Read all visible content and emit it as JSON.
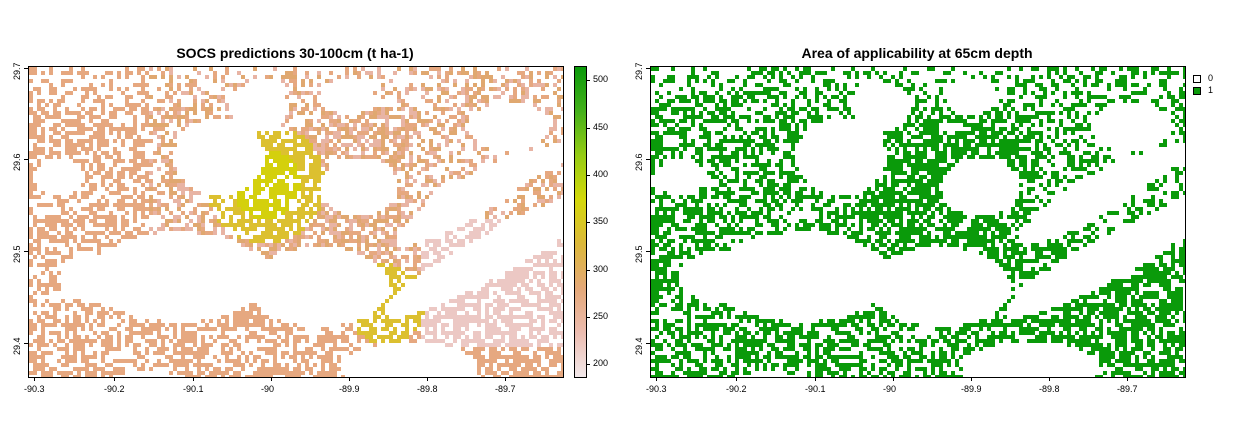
{
  "left_panel": {
    "title": "SOCS predictions 30-100cm (t ha-1)",
    "x_ticks": [
      "-90.3",
      "-90.2",
      "-90.1",
      "-90",
      "-89.9",
      "-89.8",
      "-89.7"
    ],
    "y_ticks": [
      "29.4",
      "29.5",
      "29.6",
      "29.7"
    ],
    "colorbar": {
      "ticks": [
        "500",
        "450",
        "400",
        "350",
        "300",
        "250",
        "200"
      ],
      "colors": [
        "#0a9a0a",
        "#44b01a",
        "#96cc14",
        "#d4d80a",
        "#dcb83a",
        "#e4a878",
        "#ecbcb0",
        "#f2e8ea"
      ]
    }
  },
  "right_panel": {
    "title": "Area of applicability at 65cm depth",
    "x_ticks": [
      "-90.3",
      "-90.2",
      "-90.1",
      "-90",
      "-89.9",
      "-89.8",
      "-89.7"
    ],
    "y_ticks": [
      "29.4",
      "29.5",
      "29.6",
      "29.7"
    ],
    "legend": [
      {
        "label": "0",
        "color": "#ffffff"
      },
      {
        "label": "1",
        "color": "#0a9a0a"
      }
    ]
  },
  "map_style": {
    "soc_colors": [
      "#e8b4a4",
      "#e6a880",
      "#e0a870",
      "#d8ac5c",
      "#dcc030",
      "#d4d00c",
      "#ecc8c4"
    ],
    "aoa_color": "#0a9a0a"
  }
}
